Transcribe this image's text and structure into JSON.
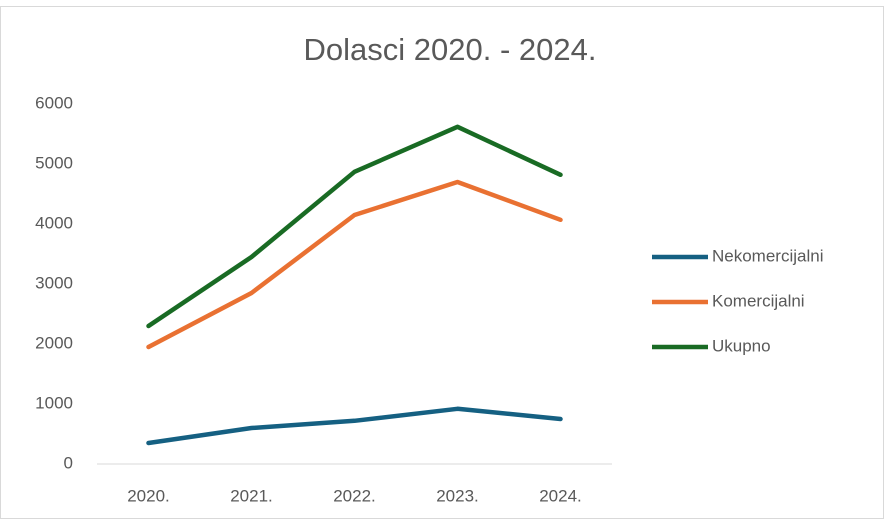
{
  "chart_data": {
    "type": "line",
    "title": "Dolasci 2020. -  2024.",
    "categories": [
      "2020.",
      "2021.",
      "2022.",
      "2023.",
      "2024."
    ],
    "series": [
      {
        "name": "Nekomercijalni",
        "color": "#156082",
        "values": [
          350,
          600,
          720,
          920,
          750
        ]
      },
      {
        "name": "Komercijalni",
        "color": "#e97132",
        "values": [
          1950,
          2850,
          4150,
          4700,
          4070
        ]
      },
      {
        "name": "Ukupno",
        "color": "#196b24",
        "values": [
          2300,
          3450,
          4870,
          5620,
          4820
        ]
      }
    ],
    "ylim": [
      0,
      6000
    ],
    "yticks": [
      0,
      1000,
      2000,
      3000,
      4000,
      5000,
      6000
    ],
    "grid": false,
    "legend": "right"
  }
}
